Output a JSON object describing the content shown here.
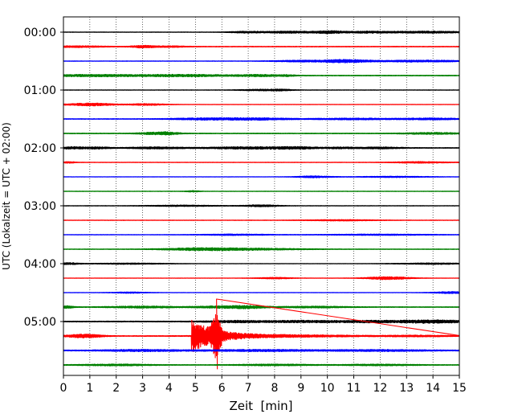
{
  "chart_data": {
    "type": "line",
    "title": "",
    "xlabel": "Zeit  [min]",
    "ylabel": "UTC (Lokalzeit = UTC + 02:00)",
    "xlim": [
      0,
      15
    ],
    "x_ticks": [
      0,
      1,
      2,
      3,
      4,
      5,
      6,
      7,
      8,
      9,
      10,
      11,
      12,
      13,
      14,
      15
    ],
    "y_tick_labels": [
      "00:00",
      "01:00",
      "02:00",
      "03:00",
      "04:00",
      "05:00"
    ],
    "y_tick_rows": [
      0,
      4,
      8,
      12,
      16,
      20
    ],
    "grid": "vertical dotted at each minute",
    "trace_colors": [
      "#000000",
      "#ff0000",
      "#0000ff",
      "#008000"
    ],
    "rows": [
      {
        "start": "00:00",
        "color": "#000000",
        "noise": 0.12,
        "bursts": [
          [
            7.0,
            0.5,
            0.45
          ],
          [
            8.2,
            0.4,
            0.35
          ],
          [
            9.0,
            0.5,
            0.4
          ],
          [
            10.1,
            0.4,
            0.7
          ],
          [
            11.5,
            0.6,
            0.4
          ],
          [
            13.8,
            1.2,
            0.5
          ]
        ]
      },
      {
        "start": "00:15",
        "color": "#ff0000",
        "noise": 0.18,
        "bursts": [
          [
            0.5,
            0.8,
            0.35
          ],
          [
            3.0,
            0.3,
            0.6
          ],
          [
            4.0,
            0.5,
            0.3
          ]
        ]
      },
      {
        "start": "00:30",
        "color": "#0000ff",
        "noise": 0.12,
        "bursts": [
          [
            9.0,
            0.8,
            0.4
          ],
          [
            10.7,
            0.6,
            0.75
          ],
          [
            13.5,
            1.5,
            0.45
          ]
        ]
      },
      {
        "start": "00:45",
        "color": "#008000",
        "noise": 0.2,
        "bursts": [
          [
            1.0,
            1.2,
            0.45
          ],
          [
            4.5,
            1.5,
            0.5
          ],
          [
            7.5,
            0.6,
            0.4
          ],
          [
            8.5,
            0.2,
            0.3
          ]
        ]
      },
      {
        "start": "01:00",
        "color": "#000000",
        "noise": 0.12,
        "bursts": [
          [
            7.5,
            0.6,
            0.35
          ],
          [
            8.3,
            0.3,
            0.3
          ]
        ]
      },
      {
        "start": "01:15",
        "color": "#ff0000",
        "noise": 0.1,
        "bursts": [
          [
            1.0,
            0.7,
            0.7
          ],
          [
            3.2,
            0.5,
            0.45
          ]
        ]
      },
      {
        "start": "01:30",
        "color": "#0000ff",
        "noise": 0.18,
        "bursts": [
          [
            5.5,
            1.0,
            0.5
          ],
          [
            7.5,
            0.8,
            0.45
          ],
          [
            11.0,
            1.2,
            0.35
          ],
          [
            14.0,
            0.8,
            0.4
          ]
        ]
      },
      {
        "start": "01:45",
        "color": "#008000",
        "noise": 0.2,
        "bursts": [
          [
            3.5,
            0.5,
            0.5
          ],
          [
            4.0,
            0.3,
            0.4
          ],
          [
            14.0,
            0.8,
            0.4
          ]
        ]
      },
      {
        "start": "02:00",
        "color": "#000000",
        "noise": 0.2,
        "bursts": [
          [
            0.3,
            0.3,
            0.5
          ],
          [
            1.2,
            0.4,
            0.45
          ],
          [
            3.5,
            0.8,
            0.4
          ],
          [
            7.0,
            1.2,
            0.5
          ],
          [
            8.8,
            0.6,
            0.45
          ],
          [
            10.5,
            0.4,
            0.35
          ],
          [
            12.0,
            0.6,
            0.4
          ]
        ]
      },
      {
        "start": "02:15",
        "color": "#ff0000",
        "noise": 0.12,
        "bursts": [
          [
            0.2,
            0.2,
            0.35
          ],
          [
            13.5,
            0.8,
            0.35
          ]
        ]
      },
      {
        "start": "02:30",
        "color": "#0000ff",
        "noise": 0.1,
        "bursts": [
          [
            9.5,
            0.5,
            0.45
          ],
          [
            12.5,
            1.0,
            0.3
          ]
        ]
      },
      {
        "start": "02:45",
        "color": "#008000",
        "noise": 0.12,
        "bursts": [
          [
            4.9,
            0.2,
            0.3
          ]
        ]
      },
      {
        "start": "03:00",
        "color": "#000000",
        "noise": 0.12,
        "bursts": [
          [
            7.5,
            0.5,
            0.45
          ],
          [
            4.5,
            1.0,
            0.3
          ]
        ]
      },
      {
        "start": "03:15",
        "color": "#ff0000",
        "noise": 0.12,
        "bursts": [
          [
            10.5,
            1.0,
            0.3
          ]
        ]
      },
      {
        "start": "03:30",
        "color": "#0000ff",
        "noise": 0.12,
        "bursts": [
          [
            6.5,
            1.0,
            0.3
          ],
          [
            12.0,
            1.5,
            0.3
          ]
        ]
      },
      {
        "start": "03:45",
        "color": "#008000",
        "noise": 0.15,
        "bursts": [
          [
            5.0,
            1.0,
            0.5
          ],
          [
            7.0,
            1.5,
            0.45
          ]
        ]
      },
      {
        "start": "04:00",
        "color": "#000000",
        "noise": 0.1,
        "bursts": [
          [
            0.2,
            0.3,
            0.45
          ],
          [
            2.5,
            1.0,
            0.3
          ],
          [
            14.0,
            1.0,
            0.35
          ]
        ]
      },
      {
        "start": "04:15",
        "color": "#ff0000",
        "noise": 0.1,
        "bursts": [
          [
            8.0,
            0.5,
            0.35
          ],
          [
            12.3,
            0.6,
            0.75
          ]
        ]
      },
      {
        "start": "04:30",
        "color": "#0000ff",
        "noise": 0.1,
        "bursts": [
          [
            2.5,
            0.5,
            0.3
          ],
          [
            14.7,
            0.5,
            0.5
          ]
        ]
      },
      {
        "start": "04:45",
        "color": "#008000",
        "noise": 0.2,
        "bursts": [
          [
            0.1,
            0.2,
            0.6
          ],
          [
            3.0,
            1.0,
            0.4
          ],
          [
            6.0,
            0.8,
            0.45
          ],
          [
            7.0,
            0.5,
            0.55
          ],
          [
            9.5,
            1.0,
            0.35
          ]
        ]
      },
      {
        "start": "05:00",
        "color": "#000000",
        "noise": 0.25,
        "bursts": [
          [
            6.5,
            0.8,
            0.45
          ],
          [
            9.0,
            1.0,
            0.45
          ],
          [
            11.5,
            1.0,
            0.45
          ],
          [
            14.0,
            1.0,
            0.7
          ]
        ]
      },
      {
        "start": "05:15",
        "color": "#ff0000",
        "noise": 0.2,
        "bursts": [
          [
            0.8,
            0.5,
            0.9
          ],
          [
            8.5,
            2.0,
            0.5
          ],
          [
            13.5,
            1.0,
            0.3
          ]
        ],
        "event": {
          "onset": 4.85,
          "peak": 5.8,
          "peak_amplitude": 20.0,
          "decay": 0.9
        }
      },
      {
        "start": "05:30",
        "color": "#0000ff",
        "noise": 0.25,
        "bursts": [
          [
            3.0,
            1.2,
            0.4
          ],
          [
            7.5,
            1.5,
            0.4
          ],
          [
            12.0,
            1.5,
            0.35
          ]
        ]
      },
      {
        "start": "05:45",
        "color": "#008000",
        "noise": 0.2,
        "bursts": [
          [
            2.0,
            1.0,
            0.35
          ],
          [
            8.0,
            1.0,
            0.35
          ],
          [
            12.0,
            1.0,
            0.3
          ]
        ]
      }
    ]
  }
}
